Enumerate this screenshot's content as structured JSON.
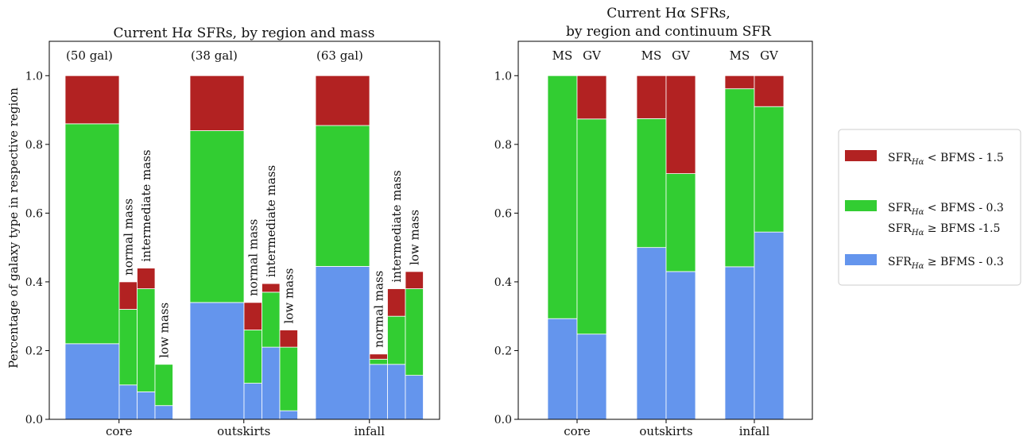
{
  "colors": {
    "red": "#b22222",
    "green": "#32cd32",
    "blue": "#6495ed"
  },
  "legend": {
    "items": [
      {
        "color_key": "red",
        "lines": [
          "SFR<sub>Hα</sub> < BFMS - 1.5"
        ]
      },
      {
        "color_key": "green",
        "lines": [
          "SFR<sub>Hα</sub> < BFMS - 0.3",
          "SFR<sub>Hα</sub> ≥ BFMS -1.5"
        ]
      },
      {
        "color_key": "blue",
        "lines": [
          "SFR<sub>Hα</sub> ≥ BFMS - 0.3"
        ]
      }
    ]
  },
  "chart_data": [
    {
      "type": "bar",
      "stacked": true,
      "title": "Current Hα SFRs, by region and mass",
      "ylabel": "Percentage of galaxy type in respective region",
      "ylim": [
        0,
        1.1
      ],
      "yticks": [
        "0.0",
        "0.2",
        "0.4",
        "0.6",
        "0.8",
        "1.0"
      ],
      "categories": [
        "core",
        "outskirts",
        "infall"
      ],
      "group_counts": [
        "(50 gal)",
        "(38 gal)",
        "(63 gal)"
      ],
      "sub_labels": [
        "normal mass",
        "intermediate mass",
        "low mass"
      ],
      "groups": [
        {
          "all": [
            0.22,
            0.64,
            0.14
          ],
          "subs": [
            [
              0.1,
              0.22,
              0.08
            ],
            [
              0.08,
              0.3,
              0.06
            ],
            [
              0.04,
              0.12,
              0.0
            ]
          ]
        },
        {
          "all": [
            0.34,
            0.5,
            0.16
          ],
          "subs": [
            [
              0.105,
              0.155,
              0.08
            ],
            [
              0.21,
              0.16,
              0.025
            ],
            [
              0.025,
              0.185,
              0.05
            ]
          ]
        },
        {
          "all": [
            0.445,
            0.41,
            0.145
          ],
          "subs": [
            [
              0.16,
              0.015,
              0.015
            ],
            [
              0.16,
              0.14,
              0.08
            ],
            [
              0.128,
              0.252,
              0.05
            ]
          ]
        }
      ]
    },
    {
      "type": "bar",
      "stacked": true,
      "title": [
        "Current Hα SFRs,",
        "by region and continuum SFR"
      ],
      "ylabel": "",
      "ylim": [
        0,
        1.1
      ],
      "yticks": [
        "0.0",
        "0.2",
        "0.4",
        "0.6",
        "0.8",
        "1.0"
      ],
      "categories": [
        "core",
        "outskirts",
        "infall"
      ],
      "sub_labels": [
        "MS",
        "GV"
      ],
      "groups": [
        {
          "subs": [
            [
              0.293,
              0.707,
              0.0
            ],
            [
              0.248,
              0.626,
              0.126
            ]
          ]
        },
        {
          "subs": [
            [
              0.5,
              0.375,
              0.125
            ],
            [
              0.43,
              0.285,
              0.285
            ]
          ]
        },
        {
          "subs": [
            [
              0.444,
              0.518,
              0.038
            ],
            [
              0.545,
              0.365,
              0.09
            ]
          ]
        }
      ]
    }
  ]
}
